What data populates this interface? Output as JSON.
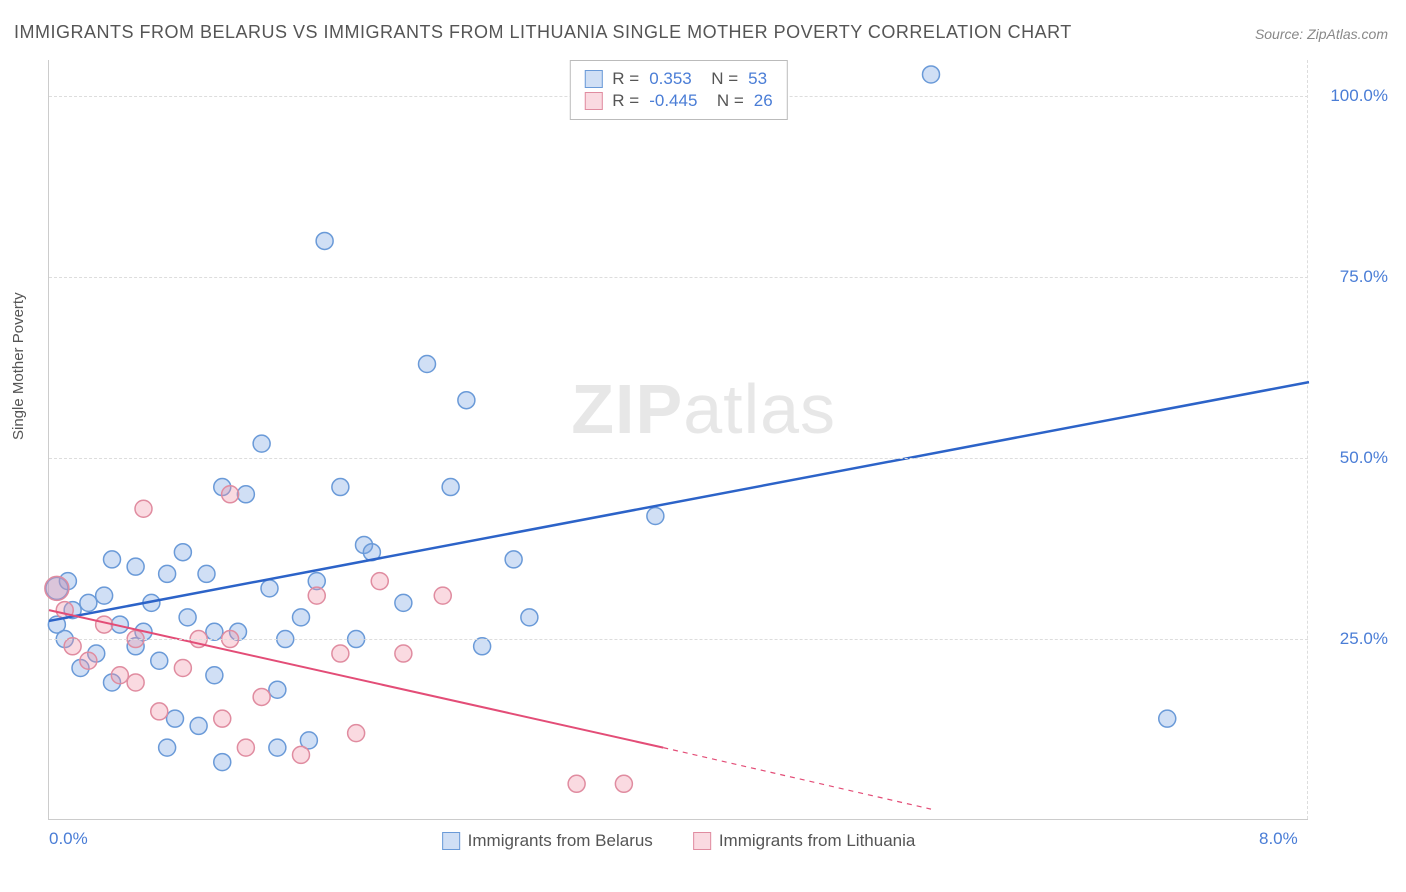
{
  "title": "IMMIGRANTS FROM BELARUS VS IMMIGRANTS FROM LITHUANIA SINGLE MOTHER POVERTY CORRELATION CHART",
  "source_label": "Source: ZipAtlas.com",
  "watermark": "ZIPatlas",
  "ylabel": "Single Mother Poverty",
  "chart": {
    "type": "scatter",
    "xlim": [
      0,
      8
    ],
    "ylim": [
      0,
      105
    ],
    "x_ticks": [
      {
        "value": 0,
        "label": "0.0%"
      },
      {
        "value": 8,
        "label": "8.0%"
      }
    ],
    "y_ticks": [
      {
        "value": 25,
        "label": "25.0%"
      },
      {
        "value": 50,
        "label": "50.0%"
      },
      {
        "value": 75,
        "label": "75.0%"
      },
      {
        "value": 100,
        "label": "100.0%"
      }
    ],
    "background_color": "#ffffff",
    "grid_color": "#dddddd",
    "marker_radius": 8.5,
    "marker_stroke_width": 1.5,
    "series": [
      {
        "name": "Immigrants from Belarus",
        "fill_color": "rgba(120,164,227,0.35)",
        "stroke_color": "#6a9ad8",
        "R": "0.353",
        "N": "53",
        "trend": {
          "x1": 0,
          "y1": 27.5,
          "x2": 8,
          "y2": 60.5,
          "color": "#2c63c8",
          "width": 2.5,
          "dash_after_x": null
        },
        "points": [
          {
            "x": 0.05,
            "y": 32,
            "r": 11
          },
          {
            "x": 0.05,
            "y": 27
          },
          {
            "x": 0.1,
            "y": 25
          },
          {
            "x": 0.15,
            "y": 29
          },
          {
            "x": 0.2,
            "y": 21
          },
          {
            "x": 0.25,
            "y": 30
          },
          {
            "x": 0.3,
            "y": 23
          },
          {
            "x": 0.35,
            "y": 31
          },
          {
            "x": 0.4,
            "y": 36
          },
          {
            "x": 0.4,
            "y": 19
          },
          {
            "x": 0.45,
            "y": 27
          },
          {
            "x": 0.55,
            "y": 35
          },
          {
            "x": 0.6,
            "y": 26
          },
          {
            "x": 0.65,
            "y": 30
          },
          {
            "x": 0.7,
            "y": 22
          },
          {
            "x": 0.75,
            "y": 34
          },
          {
            "x": 0.75,
            "y": 10
          },
          {
            "x": 0.8,
            "y": 14
          },
          {
            "x": 0.85,
            "y": 37
          },
          {
            "x": 0.88,
            "y": 28
          },
          {
            "x": 0.95,
            "y": 13
          },
          {
            "x": 1.0,
            "y": 34
          },
          {
            "x": 1.05,
            "y": 26
          },
          {
            "x": 1.1,
            "y": 46
          },
          {
            "x": 1.1,
            "y": 8
          },
          {
            "x": 1.2,
            "y": 26
          },
          {
            "x": 1.25,
            "y": 45
          },
          {
            "x": 1.35,
            "y": 52
          },
          {
            "x": 1.4,
            "y": 32
          },
          {
            "x": 1.45,
            "y": 10
          },
          {
            "x": 1.45,
            "y": 18
          },
          {
            "x": 1.5,
            "y": 25
          },
          {
            "x": 1.6,
            "y": 28
          },
          {
            "x": 1.65,
            "y": 11
          },
          {
            "x": 1.7,
            "y": 33
          },
          {
            "x": 1.75,
            "y": 80
          },
          {
            "x": 1.85,
            "y": 46
          },
          {
            "x": 1.95,
            "y": 25
          },
          {
            "x": 2.0,
            "y": 38
          },
          {
            "x": 2.05,
            "y": 37
          },
          {
            "x": 2.25,
            "y": 30
          },
          {
            "x": 2.4,
            "y": 63
          },
          {
            "x": 2.55,
            "y": 46
          },
          {
            "x": 2.65,
            "y": 58
          },
          {
            "x": 2.75,
            "y": 24
          },
          {
            "x": 2.95,
            "y": 36
          },
          {
            "x": 3.05,
            "y": 28
          },
          {
            "x": 3.85,
            "y": 42
          },
          {
            "x": 5.6,
            "y": 103
          },
          {
            "x": 7.1,
            "y": 14
          },
          {
            "x": 0.55,
            "y": 24
          },
          {
            "x": 0.12,
            "y": 33
          },
          {
            "x": 1.05,
            "y": 20
          }
        ]
      },
      {
        "name": "Immigrants from Lithuania",
        "fill_color": "rgba(240,150,170,0.35)",
        "stroke_color": "#e08ca0",
        "R": "-0.445",
        "N": "26",
        "trend": {
          "x1": 0,
          "y1": 29,
          "x2": 3.9,
          "y2": 10,
          "color": "#e34d77",
          "width": 2,
          "dash_after_x": 3.9,
          "dash_to_x": 5.6,
          "dash_to_y": 1.5
        },
        "points": [
          {
            "x": 0.05,
            "y": 32,
            "r": 12
          },
          {
            "x": 0.1,
            "y": 29
          },
          {
            "x": 0.15,
            "y": 24
          },
          {
            "x": 0.25,
            "y": 22
          },
          {
            "x": 0.35,
            "y": 27
          },
          {
            "x": 0.45,
            "y": 20
          },
          {
            "x": 0.55,
            "y": 25
          },
          {
            "x": 0.55,
            "y": 19
          },
          {
            "x": 0.6,
            "y": 43
          },
          {
            "x": 0.7,
            "y": 15
          },
          {
            "x": 0.85,
            "y": 21
          },
          {
            "x": 0.95,
            "y": 25
          },
          {
            "x": 1.1,
            "y": 14
          },
          {
            "x": 1.15,
            "y": 25
          },
          {
            "x": 1.15,
            "y": 45
          },
          {
            "x": 1.25,
            "y": 10
          },
          {
            "x": 1.35,
            "y": 17
          },
          {
            "x": 1.6,
            "y": 9
          },
          {
            "x": 1.7,
            "y": 31
          },
          {
            "x": 1.85,
            "y": 23
          },
          {
            "x": 1.95,
            "y": 12
          },
          {
            "x": 2.1,
            "y": 33
          },
          {
            "x": 2.25,
            "y": 23
          },
          {
            "x": 2.5,
            "y": 31
          },
          {
            "x": 3.35,
            "y": 5
          },
          {
            "x": 3.65,
            "y": 5
          }
        ]
      }
    ]
  },
  "legend_bottom": [
    {
      "label": "Immigrants from Belarus",
      "fill": "rgba(120,164,227,0.35)",
      "stroke": "#6a9ad8"
    },
    {
      "label": "Immigrants from Lithuania",
      "fill": "rgba(240,150,170,0.35)",
      "stroke": "#e08ca0"
    }
  ]
}
